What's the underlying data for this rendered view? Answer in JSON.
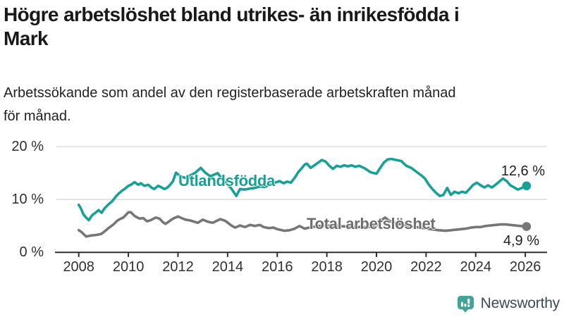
{
  "header": {
    "title": "Högre arbetslöshet bland utrikes- än inrikesfödda i\nMark",
    "subtitle": "Arbetssökande som andel av den registerbaserade arbetskraften månad\nför månad."
  },
  "chart_data": {
    "type": "line",
    "title": "Högre arbetslöshet bland utrikes- än inrikesfödda i Mark",
    "subtitle": "Arbetssökande som andel av den registerbaserade arbetskraften månad för månad.",
    "unit": "%",
    "grid": true,
    "legend_position": "inline-labels",
    "xlim": [
      2007.8,
      2026.8
    ],
    "ylim": [
      0,
      21.5
    ],
    "y_ticks": [
      {
        "value": 0,
        "label": "0 %"
      },
      {
        "value": 10,
        "label": "10 %"
      },
      {
        "value": 20,
        "label": "20 %"
      }
    ],
    "x_ticks": [
      {
        "year": 2008,
        "label": "2008"
      },
      {
        "year": 2010,
        "label": "2010"
      },
      {
        "year": 2012,
        "label": "2012"
      },
      {
        "year": 2014,
        "label": "2014"
      },
      {
        "year": 2016,
        "label": "2016"
      },
      {
        "year": 2018,
        "label": "2018"
      },
      {
        "year": 2020,
        "label": "2020"
      },
      {
        "year": 2022,
        "label": "2022"
      },
      {
        "year": 2024,
        "label": "2024"
      },
      {
        "year": 2026,
        "label": "2026"
      }
    ],
    "series": [
      {
        "name": "Utlandsfödda",
        "color": "#17a096",
        "end_value": 12.6,
        "end_label": "12,6 %",
        "points": [
          [
            2008.0,
            9.0
          ],
          [
            2008.08,
            8.4
          ],
          [
            2008.2,
            7.1
          ],
          [
            2008.4,
            6.1
          ],
          [
            2008.55,
            7.1
          ],
          [
            2008.7,
            7.6
          ],
          [
            2008.8,
            8.0
          ],
          [
            2008.92,
            7.5
          ],
          [
            2009.05,
            8.4
          ],
          [
            2009.2,
            9.1
          ],
          [
            2009.35,
            9.7
          ],
          [
            2009.5,
            10.6
          ],
          [
            2009.6,
            11.1
          ],
          [
            2009.75,
            11.7
          ],
          [
            2009.9,
            12.2
          ],
          [
            2010.0,
            12.6
          ],
          [
            2010.1,
            12.8
          ],
          [
            2010.25,
            13.3
          ],
          [
            2010.4,
            12.8
          ],
          [
            2010.5,
            13.1
          ],
          [
            2010.65,
            12.6
          ],
          [
            2010.8,
            12.8
          ],
          [
            2010.95,
            12.2
          ],
          [
            2011.05,
            12.0
          ],
          [
            2011.2,
            12.6
          ],
          [
            2011.3,
            12.4
          ],
          [
            2011.45,
            12.0
          ],
          [
            2011.55,
            12.2
          ],
          [
            2011.65,
            12.6
          ],
          [
            2011.8,
            13.5
          ],
          [
            2011.92,
            15.1
          ],
          [
            2012.1,
            14.4
          ],
          [
            2012.3,
            14.1
          ],
          [
            2012.5,
            14.6
          ],
          [
            2012.7,
            15.1
          ],
          [
            2012.92,
            16.0
          ],
          [
            2013.1,
            15.1
          ],
          [
            2013.3,
            14.4
          ],
          [
            2013.6,
            15.0
          ],
          [
            2013.8,
            13.8
          ],
          [
            2014.0,
            12.8
          ],
          [
            2014.15,
            12.1
          ],
          [
            2014.35,
            10.7
          ],
          [
            2014.5,
            12.0
          ],
          [
            2014.7,
            11.9
          ],
          [
            2014.9,
            12.1
          ],
          [
            2015.1,
            12.2
          ],
          [
            2015.3,
            12.5
          ],
          [
            2015.5,
            12.4
          ],
          [
            2015.7,
            12.8
          ],
          [
            2015.9,
            13.2
          ],
          [
            2016.1,
            13.5
          ],
          [
            2016.25,
            13.1
          ],
          [
            2016.4,
            13.4
          ],
          [
            2016.55,
            13.2
          ],
          [
            2016.7,
            14.1
          ],
          [
            2016.85,
            15.2
          ],
          [
            2017.0,
            16.0
          ],
          [
            2017.1,
            16.6
          ],
          [
            2017.2,
            16.8
          ],
          [
            2017.35,
            16.0
          ],
          [
            2017.5,
            16.5
          ],
          [
            2017.65,
            17.0
          ],
          [
            2017.8,
            17.5
          ],
          [
            2017.95,
            17.2
          ],
          [
            2018.1,
            16.4
          ],
          [
            2018.25,
            15.8
          ],
          [
            2018.4,
            16.4
          ],
          [
            2018.55,
            16.2
          ],
          [
            2018.7,
            16.5
          ],
          [
            2018.85,
            16.3
          ],
          [
            2019.0,
            16.5
          ],
          [
            2019.15,
            16.2
          ],
          [
            2019.3,
            16.4
          ],
          [
            2019.45,
            16.1
          ],
          [
            2019.6,
            15.7
          ],
          [
            2019.75,
            15.2
          ],
          [
            2019.9,
            15.0
          ],
          [
            2020.0,
            14.9
          ],
          [
            2020.15,
            16.0
          ],
          [
            2020.3,
            17.0
          ],
          [
            2020.45,
            17.6
          ],
          [
            2020.6,
            17.7
          ],
          [
            2020.8,
            17.5
          ],
          [
            2021.0,
            17.3
          ],
          [
            2021.2,
            16.4
          ],
          [
            2021.4,
            16.0
          ],
          [
            2021.6,
            15.3
          ],
          [
            2021.8,
            14.6
          ],
          [
            2021.95,
            14.0
          ],
          [
            2022.1,
            12.9
          ],
          [
            2022.25,
            12.0
          ],
          [
            2022.4,
            11.3
          ],
          [
            2022.55,
            10.7
          ],
          [
            2022.7,
            10.9
          ],
          [
            2022.85,
            12.2
          ],
          [
            2023.0,
            10.9
          ],
          [
            2023.15,
            11.5
          ],
          [
            2023.3,
            11.2
          ],
          [
            2023.45,
            11.5
          ],
          [
            2023.6,
            11.3
          ],
          [
            2023.75,
            12.0
          ],
          [
            2023.9,
            12.8
          ],
          [
            2024.05,
            13.2
          ],
          [
            2024.2,
            12.7
          ],
          [
            2024.35,
            12.3
          ],
          [
            2024.5,
            12.7
          ],
          [
            2024.65,
            12.3
          ],
          [
            2024.8,
            12.8
          ],
          [
            2024.95,
            13.4
          ],
          [
            2025.1,
            14.0
          ],
          [
            2025.25,
            13.5
          ],
          [
            2025.4,
            12.7
          ],
          [
            2025.55,
            12.3
          ],
          [
            2025.7,
            11.9
          ],
          [
            2025.9,
            12.3
          ],
          [
            2026.05,
            12.6
          ]
        ]
      },
      {
        "name": "Total arbetslöshet",
        "color": "#767676",
        "end_value": 4.9,
        "end_label": "4,9 %",
        "points": [
          [
            2008.0,
            4.2
          ],
          [
            2008.1,
            3.9
          ],
          [
            2008.3,
            3.0
          ],
          [
            2008.5,
            3.2
          ],
          [
            2008.7,
            3.3
          ],
          [
            2008.9,
            3.5
          ],
          [
            2009.0,
            3.8
          ],
          [
            2009.2,
            4.6
          ],
          [
            2009.4,
            5.3
          ],
          [
            2009.55,
            6.0
          ],
          [
            2009.7,
            6.4
          ],
          [
            2009.8,
            6.6
          ],
          [
            2009.9,
            7.1
          ],
          [
            2010.0,
            7.6
          ],
          [
            2010.1,
            7.6
          ],
          [
            2010.25,
            6.9
          ],
          [
            2010.45,
            6.4
          ],
          [
            2010.6,
            6.5
          ],
          [
            2010.75,
            5.9
          ],
          [
            2010.9,
            6.1
          ],
          [
            2011.1,
            6.6
          ],
          [
            2011.25,
            6.4
          ],
          [
            2011.4,
            5.7
          ],
          [
            2011.5,
            5.4
          ],
          [
            2011.65,
            5.9
          ],
          [
            2011.8,
            6.4
          ],
          [
            2012.0,
            6.8
          ],
          [
            2012.15,
            6.5
          ],
          [
            2012.3,
            6.2
          ],
          [
            2012.45,
            6.1
          ],
          [
            2012.6,
            5.9
          ],
          [
            2012.8,
            5.6
          ],
          [
            2013.0,
            6.2
          ],
          [
            2013.2,
            5.8
          ],
          [
            2013.4,
            5.6
          ],
          [
            2013.7,
            6.3
          ],
          [
            2013.9,
            6.0
          ],
          [
            2014.15,
            5.1
          ],
          [
            2014.3,
            4.7
          ],
          [
            2014.5,
            5.1
          ],
          [
            2014.7,
            4.8
          ],
          [
            2014.9,
            5.2
          ],
          [
            2015.1,
            5.0
          ],
          [
            2015.3,
            5.2
          ],
          [
            2015.45,
            4.8
          ],
          [
            2015.65,
            4.6
          ],
          [
            2015.85,
            4.7
          ],
          [
            2016.0,
            4.4
          ],
          [
            2016.3,
            4.1
          ],
          [
            2016.5,
            4.2
          ],
          [
            2016.7,
            4.5
          ],
          [
            2016.9,
            5.0
          ],
          [
            2017.1,
            4.5
          ],
          [
            2017.4,
            4.8
          ],
          [
            2017.7,
            5.0
          ],
          [
            2018.0,
            5.1
          ],
          [
            2018.4,
            5.0
          ],
          [
            2018.8,
            4.9
          ],
          [
            2019.2,
            4.8
          ],
          [
            2019.6,
            4.8
          ],
          [
            2019.9,
            4.9
          ],
          [
            2020.1,
            5.4
          ],
          [
            2020.25,
            6.3
          ],
          [
            2020.35,
            6.6
          ],
          [
            2020.5,
            6.0
          ],
          [
            2020.65,
            5.7
          ],
          [
            2020.8,
            5.5
          ],
          [
            2021.0,
            5.3
          ],
          [
            2021.3,
            5.0
          ],
          [
            2021.6,
            4.8
          ],
          [
            2021.9,
            4.6
          ],
          [
            2022.2,
            4.4
          ],
          [
            2022.5,
            4.2
          ],
          [
            2022.8,
            4.1
          ],
          [
            2023.0,
            4.2
          ],
          [
            2023.2,
            4.3
          ],
          [
            2023.4,
            4.4
          ],
          [
            2023.6,
            4.5
          ],
          [
            2023.8,
            4.7
          ],
          [
            2024.0,
            4.8
          ],
          [
            2024.2,
            4.8
          ],
          [
            2024.4,
            5.0
          ],
          [
            2024.6,
            5.1
          ],
          [
            2024.8,
            5.2
          ],
          [
            2025.0,
            5.3
          ],
          [
            2025.2,
            5.3
          ],
          [
            2025.4,
            5.2
          ],
          [
            2025.6,
            5.1
          ],
          [
            2025.8,
            5.0
          ],
          [
            2026.05,
            4.9
          ]
        ]
      }
    ],
    "style": {
      "grid_color": "#dcdcdc",
      "axis_color": "#2f2f2f",
      "background": "#ffffff"
    }
  },
  "branding": {
    "logo_text": "Newsworthy",
    "logo_icon": "newsworthy-chart-bubble-icon",
    "logo_color": "#43a399",
    "logo_text_color": "#3b4a54"
  }
}
